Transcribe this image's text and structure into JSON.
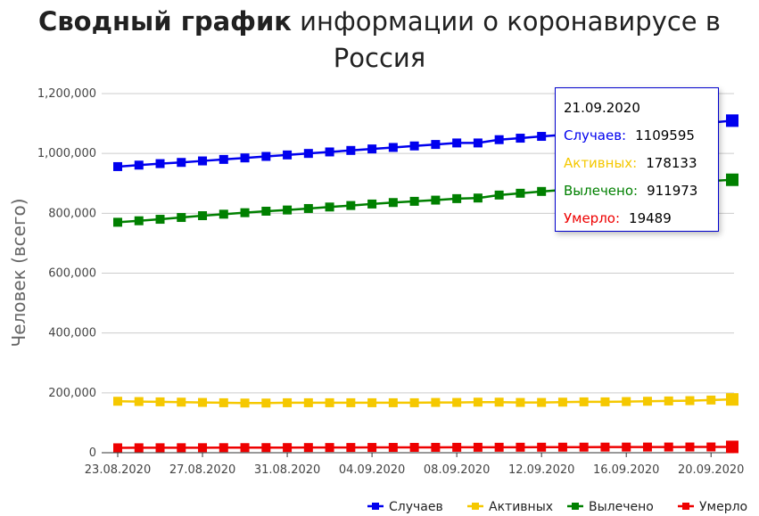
{
  "title_bold": "Сводный график",
  "title_rest": " информации о коронавирусе в Россия",
  "chart_data": {
    "type": "line",
    "ylabel": "Человек (всего)",
    "ylim": [
      0,
      1200000
    ],
    "y_ticks": [
      0,
      200000,
      400000,
      600000,
      800000,
      1000000,
      1200000
    ],
    "y_tick_labels": [
      "0",
      "200,000",
      "400,000",
      "600,000",
      "800,000",
      "1,000,000",
      "1,200,000"
    ],
    "x": [
      "23.08.2020",
      "24.08.2020",
      "25.08.2020",
      "26.08.2020",
      "27.08.2020",
      "28.08.2020",
      "29.08.2020",
      "30.08.2020",
      "31.08.2020",
      "01.09.2020",
      "02.09.2020",
      "03.09.2020",
      "04.09.2020",
      "05.09.2020",
      "06.09.2020",
      "07.09.2020",
      "08.09.2020",
      "09.09.2020",
      "10.09.2020",
      "11.09.2020",
      "12.09.2020",
      "13.09.2020",
      "14.09.2020",
      "15.09.2020",
      "16.09.2020",
      "17.09.2020",
      "18.09.2020",
      "19.09.2020",
      "20.09.2020",
      "21.09.2020"
    ],
    "x_tick_labels": [
      "23.08.2020",
      "27.08.2020",
      "31.08.2020",
      "04.09.2020",
      "08.09.2020",
      "12.09.2020",
      "16.09.2020",
      "20.09.2020"
    ],
    "series": [
      {
        "name": "Случаев",
        "color": "#0000ee",
        "values": [
          956000,
          961000,
          966000,
          970000,
          975000,
          980000,
          985000,
          990000,
          995000,
          1000000,
          1005000,
          1010000,
          1015000,
          1020000,
          1025000,
          1030000,
          1035000,
          1035000,
          1046000,
          1051000,
          1057000,
          1062000,
          1068000,
          1073000,
          1079000,
          1085000,
          1091000,
          1097000,
          1103000,
          1109595
        ]
      },
      {
        "name": "Активных",
        "color": "#f5c800",
        "values": [
          172000,
          171000,
          170000,
          169000,
          168000,
          167000,
          166000,
          166000,
          167000,
          167000,
          167000,
          167000,
          167000,
          167000,
          167000,
          168000,
          168000,
          169000,
          169000,
          168000,
          168000,
          169000,
          170000,
          170000,
          171000,
          172000,
          173000,
          174000,
          176000,
          178133
        ]
      },
      {
        "name": "Вылечено",
        "color": "#008000",
        "values": [
          770000,
          775000,
          780000,
          786000,
          792000,
          797000,
          802000,
          807000,
          811000,
          816000,
          821000,
          826000,
          831000,
          836000,
          840000,
          844000,
          849000,
          851000,
          861000,
          867000,
          873000,
          878000,
          882000,
          887000,
          892000,
          897000,
          901000,
          905000,
          908000,
          911973
        ]
      },
      {
        "name": "Умерло",
        "color": "#ee0000",
        "values": [
          16500,
          16600,
          16700,
          16800,
          16900,
          17000,
          17100,
          17200,
          17300,
          17400,
          17500,
          17600,
          17700,
          17800,
          17900,
          18000,
          18100,
          18200,
          18300,
          18400,
          18500,
          18600,
          18700,
          18800,
          18900,
          19000,
          19100,
          19200,
          19300,
          19489
        ]
      }
    ],
    "legend_position": "bottom-right",
    "grid": true
  },
  "tooltip": {
    "date": "21.09.2020",
    "rows": [
      {
        "label": "Случаев:",
        "value": "1109595",
        "color": "#0000ee"
      },
      {
        "label": "Активных:",
        "value": "178133",
        "color": "#f5c800"
      },
      {
        "label": "Вылечено:",
        "value": "911973",
        "color": "#008000"
      },
      {
        "label": "Умерло:",
        "value": "19489",
        "color": "#ee0000"
      }
    ]
  }
}
